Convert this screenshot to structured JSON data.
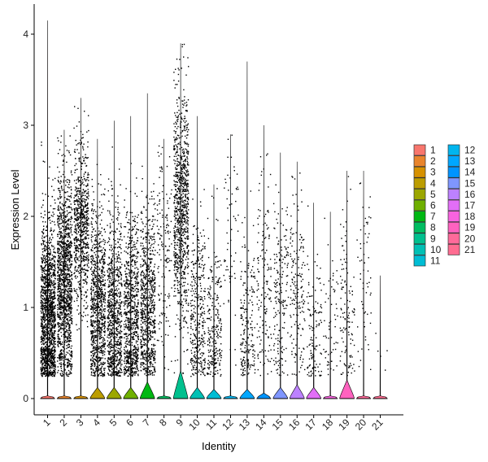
{
  "chart_data": {
    "type": "violin",
    "xlabel": "Identity",
    "ylabel": "Expression Level",
    "ylim": [
      -0.2,
      4.4
    ],
    "yticks": [
      0,
      1,
      2,
      3,
      4
    ],
    "grid": false,
    "legend_position": "right",
    "legend_columns": 2,
    "categories": [
      "1",
      "2",
      "3",
      "4",
      "5",
      "6",
      "7",
      "8",
      "9",
      "10",
      "11",
      "12",
      "13",
      "14",
      "15",
      "16",
      "17",
      "18",
      "19",
      "20",
      "21"
    ],
    "colors": [
      "#F8766D",
      "#E9842C",
      "#D69100",
      "#BC9D00",
      "#9CA700",
      "#6FB000",
      "#00B813",
      "#00BD61",
      "#00C08E",
      "#00C0B4",
      "#00BDD4",
      "#00B5EE",
      "#00A7FF",
      "#0094FF",
      "#7F96FF",
      "#BC81FF",
      "#E26EF7",
      "#F863DF",
      "#FF62BF",
      "#FF6A9A",
      "#FF6C91"
    ],
    "series": [
      {
        "name": "1",
        "max": 4.15,
        "density": 0.03,
        "point_mean": 0.9,
        "point_sd": 0.55,
        "point_count": 1500
      },
      {
        "name": "2",
        "max": 2.95,
        "density": 0.03,
        "point_mean": 1.3,
        "point_sd": 0.6,
        "point_count": 1300
      },
      {
        "name": "3",
        "max": 3.3,
        "density": 0.03,
        "point_mean": 1.9,
        "point_sd": 0.45,
        "point_count": 700
      },
      {
        "name": "4",
        "max": 2.85,
        "density": 0.12,
        "point_mean": 1.0,
        "point_sd": 0.55,
        "point_count": 900
      },
      {
        "name": "5",
        "max": 3.05,
        "density": 0.12,
        "point_mean": 0.9,
        "point_sd": 0.55,
        "point_count": 800
      },
      {
        "name": "6",
        "max": 3.1,
        "density": 0.12,
        "point_mean": 0.9,
        "point_sd": 0.55,
        "point_count": 800
      },
      {
        "name": "7",
        "max": 3.35,
        "density": 0.18,
        "point_mean": 1.0,
        "point_sd": 0.55,
        "point_count": 750
      },
      {
        "name": "8",
        "max": 2.85,
        "density": 0.03,
        "point_mean": 1.6,
        "point_sd": 0.6,
        "point_count": 150
      },
      {
        "name": "9",
        "max": 3.9,
        "density": 0.3,
        "point_mean": 2.1,
        "point_sd": 0.65,
        "point_count": 900
      },
      {
        "name": "10",
        "max": 3.1,
        "density": 0.12,
        "point_mean": 0.9,
        "point_sd": 0.55,
        "point_count": 350
      },
      {
        "name": "11",
        "max": 2.35,
        "density": 0.1,
        "point_mean": 0.8,
        "point_sd": 0.45,
        "point_count": 250
      },
      {
        "name": "12",
        "max": 2.9,
        "density": 0.03,
        "point_mean": 1.8,
        "point_sd": 0.55,
        "point_count": 60
      },
      {
        "name": "13",
        "max": 3.7,
        "density": 0.1,
        "point_mean": 0.7,
        "point_sd": 0.5,
        "point_count": 200
      },
      {
        "name": "14",
        "max": 3.0,
        "density": 0.06,
        "point_mean": 1.2,
        "point_sd": 0.6,
        "point_count": 150
      },
      {
        "name": "15",
        "max": 2.7,
        "density": 0.12,
        "point_mean": 1.1,
        "point_sd": 0.6,
        "point_count": 180
      },
      {
        "name": "16",
        "max": 2.6,
        "density": 0.15,
        "point_mean": 1.2,
        "point_sd": 0.55,
        "point_count": 170
      },
      {
        "name": "17",
        "max": 2.15,
        "density": 0.12,
        "point_mean": 0.8,
        "point_sd": 0.5,
        "point_count": 120
      },
      {
        "name": "18",
        "max": 2.05,
        "density": 0.03,
        "point_mean": 0.8,
        "point_sd": 0.45,
        "point_count": 60
      },
      {
        "name": "19",
        "max": 2.5,
        "density": 0.2,
        "point_mean": 0.9,
        "point_sd": 0.55,
        "point_count": 120
      },
      {
        "name": "20",
        "max": 2.5,
        "density": 0.03,
        "point_mean": 1.4,
        "point_sd": 0.6,
        "point_count": 60
      },
      {
        "name": "21",
        "max": 1.35,
        "density": 0.03,
        "point_mean": 0.4,
        "point_sd": 0.3,
        "point_count": 5
      }
    ]
  }
}
